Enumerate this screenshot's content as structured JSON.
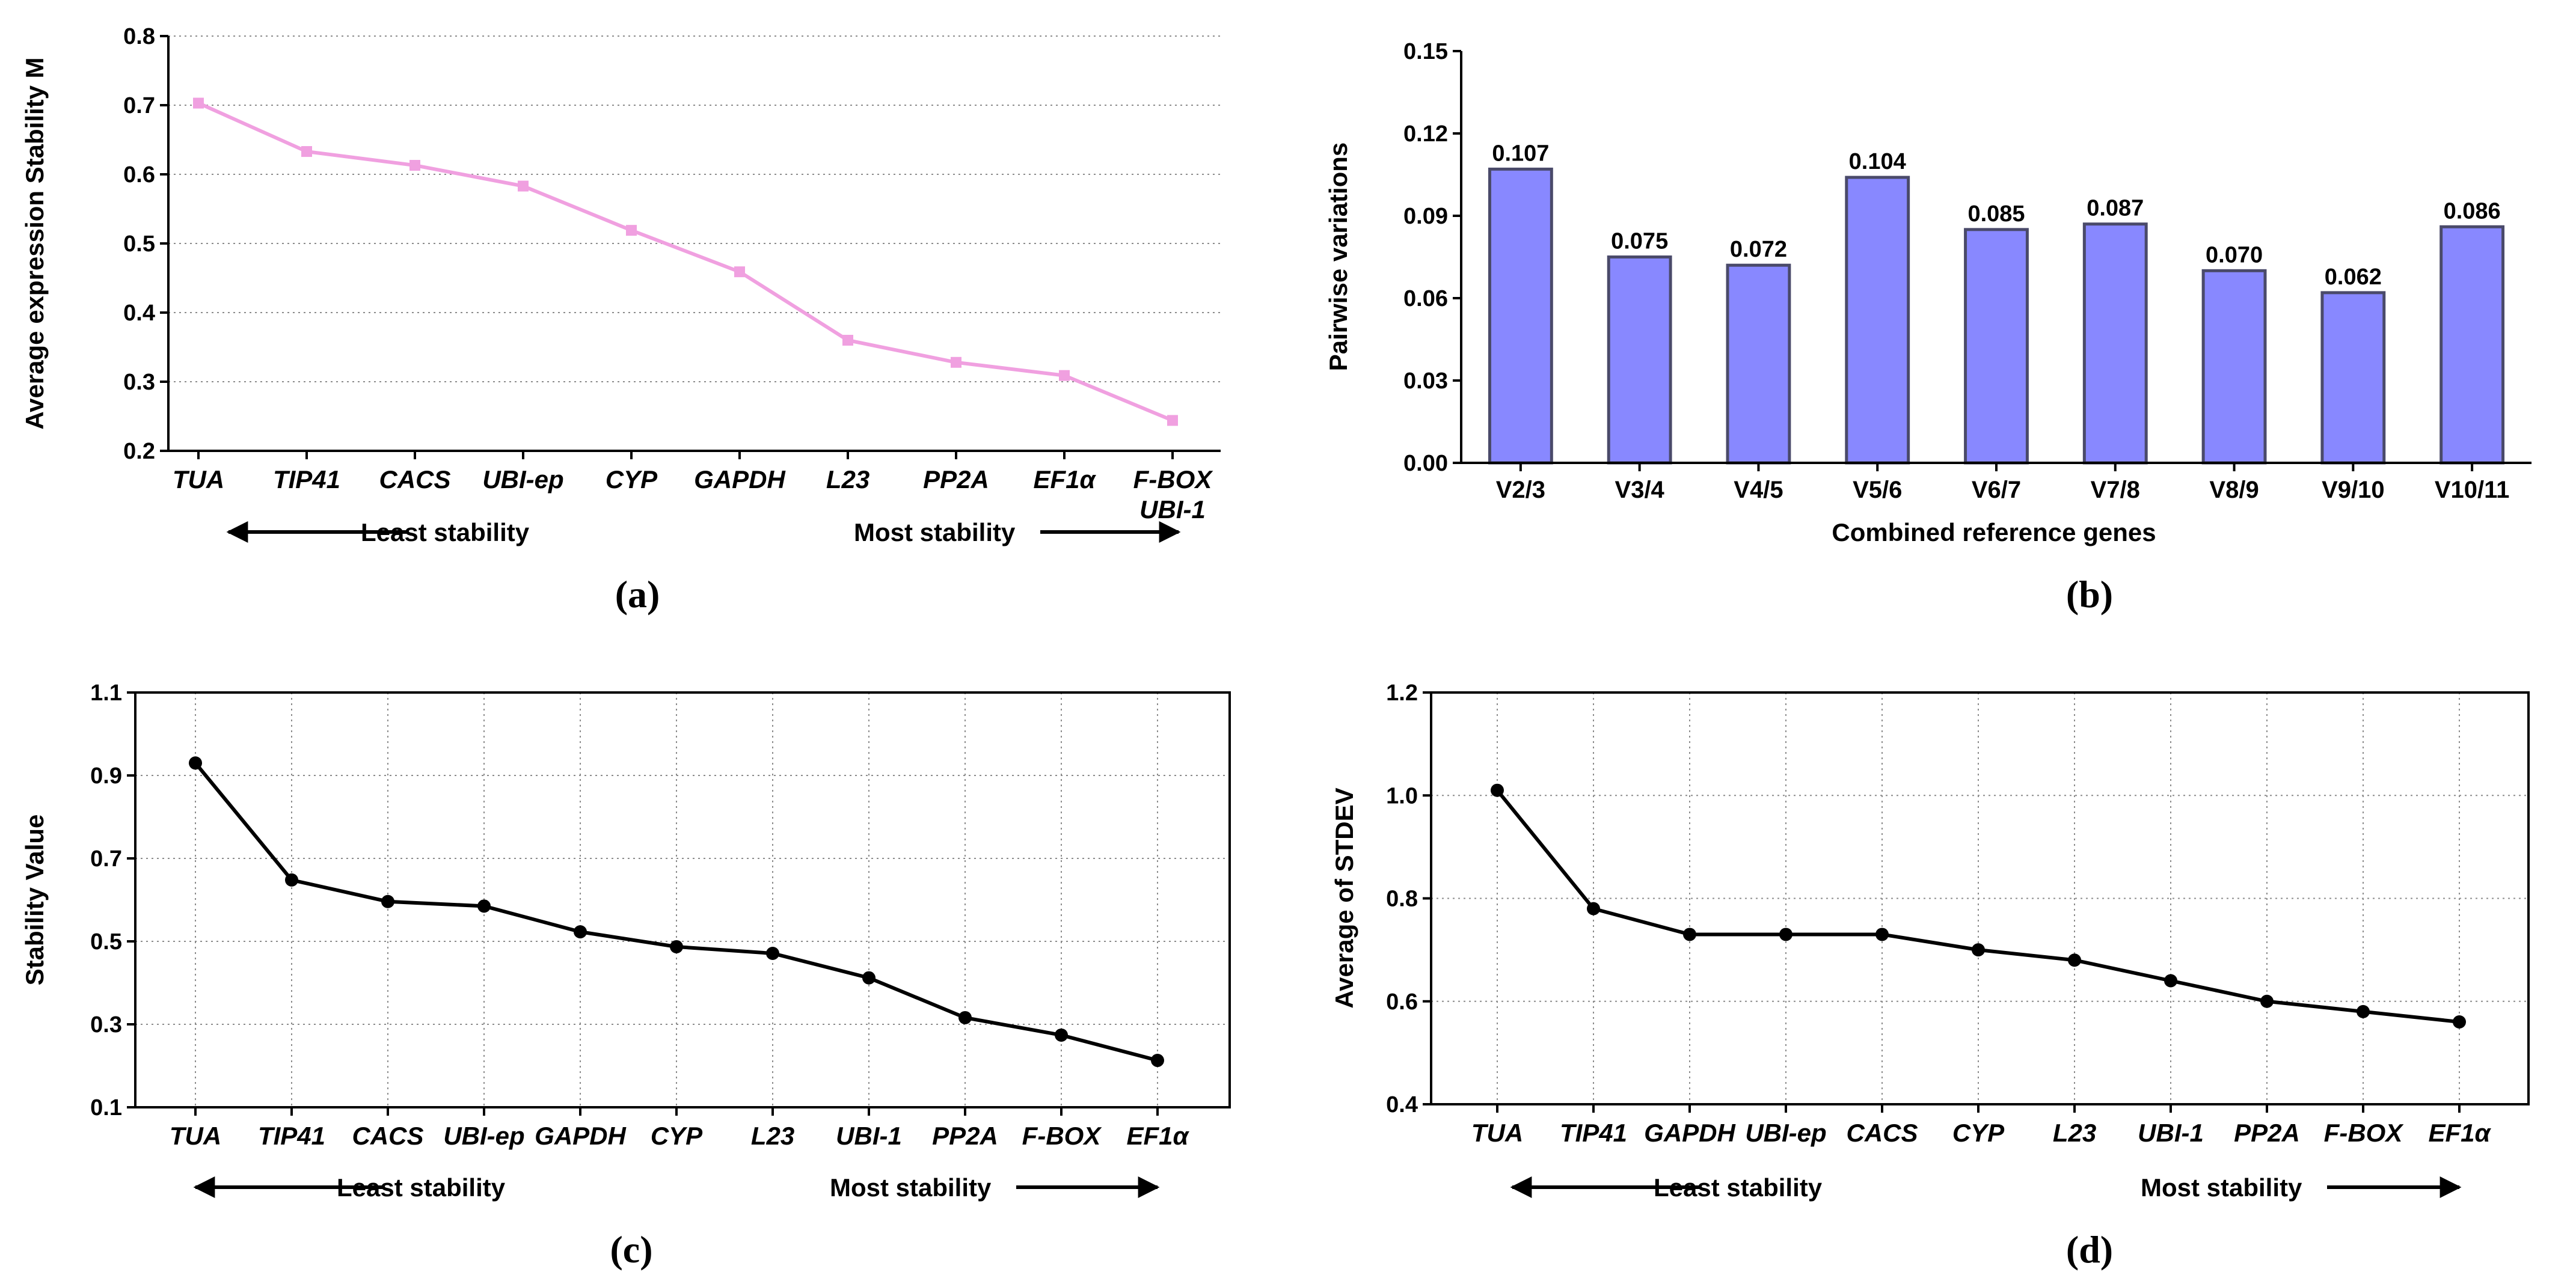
{
  "colors": {
    "pink": "#f0a0e0",
    "bar": "#8888ff",
    "bar_edge": "#4a4a6a",
    "black": "#000000"
  },
  "panels": {
    "a": {
      "label": "(a)",
      "arrow_left": "Least stability",
      "arrow_right": "Most stability"
    },
    "b": {
      "label": "(b)"
    },
    "c": {
      "label": "(c)",
      "arrow_left": "Least stability",
      "arrow_right": "Most stability"
    },
    "d": {
      "label": "(d)",
      "arrow_left": "Least stability",
      "arrow_right": "Most stability"
    }
  },
  "chart_data": [
    {
      "id": "a",
      "type": "line",
      "ylabel": "Average expression Stability M",
      "xlabel": "",
      "ylim": [
        0.2,
        0.8
      ],
      "yticks": [
        "0.2",
        "0.3",
        "0.4",
        "0.5",
        "0.6",
        "0.7",
        "0.8"
      ],
      "categories": [
        "TUA",
        "TIP41",
        "CACS",
        "UBI-ep",
        "CYP",
        "GAPDH",
        "L23",
        "PP2A",
        "EF1α",
        "F-BOX"
      ],
      "last_category_second_line": "UBI-1",
      "values": [
        0.703,
        0.633,
        0.613,
        0.583,
        0.519,
        0.459,
        0.36,
        0.328,
        0.309,
        0.244
      ],
      "grid": "horizontal",
      "marker": "square",
      "color": "#f0a0e0"
    },
    {
      "id": "b",
      "type": "bar",
      "ylabel": "Pairwise variations",
      "xlabel": "Combined reference genes",
      "ylim": [
        0,
        0.15
      ],
      "yticks": [
        "0.00",
        "0.03",
        "0.06",
        "0.09",
        "0.12",
        "0.15"
      ],
      "categories": [
        "V2/3",
        "V3/4",
        "V4/5",
        "V5/6",
        "V6/7",
        "V7/8",
        "V8/9",
        "V9/10",
        "V10/11"
      ],
      "values": [
        0.107,
        0.075,
        0.072,
        0.104,
        0.085,
        0.087,
        0.07,
        0.062,
        0.086
      ],
      "data_labels": [
        "0.107",
        "0.075",
        "0.072",
        "0.104",
        "0.085",
        "0.087",
        "0.070",
        "0.062",
        "0.086"
      ],
      "color": "#8888ff"
    },
    {
      "id": "c",
      "type": "line",
      "ylabel": "Stability Value",
      "xlabel": "",
      "ylim": [
        0.1,
        1.1
      ],
      "yticks": [
        "0.1",
        "0.3",
        "0.5",
        "0.7",
        "0.9",
        "1.1"
      ],
      "categories": [
        "TUA",
        "TIP41",
        "CACS",
        "UBI-ep",
        "GAPDH",
        "CYP",
        "L23",
        "UBI-1",
        "PP2A",
        "F-BOX",
        "EF1α"
      ],
      "values": [
        0.93,
        0.648,
        0.596,
        0.585,
        0.523,
        0.487,
        0.471,
        0.412,
        0.316,
        0.274,
        0.213
      ],
      "grid": "both",
      "marker": "circle",
      "color": "#000000"
    },
    {
      "id": "d",
      "type": "line",
      "ylabel": "Average of STDEV",
      "xlabel": "",
      "ylim": [
        0.4,
        1.2
      ],
      "yticks": [
        "0.4",
        "0.6",
        "0.8",
        "1.0",
        "1.2"
      ],
      "categories": [
        "TUA",
        "TIP41",
        "GAPDH",
        "UBI-ep",
        "CACS",
        "CYP",
        "L23",
        "UBI-1",
        "PP2A",
        "F-BOX",
        "EF1α"
      ],
      "values": [
        1.01,
        0.78,
        0.73,
        0.73,
        0.73,
        0.7,
        0.68,
        0.64,
        0.6,
        0.58,
        0.56
      ],
      "grid": "both",
      "marker": "circle",
      "color": "#000000"
    }
  ]
}
